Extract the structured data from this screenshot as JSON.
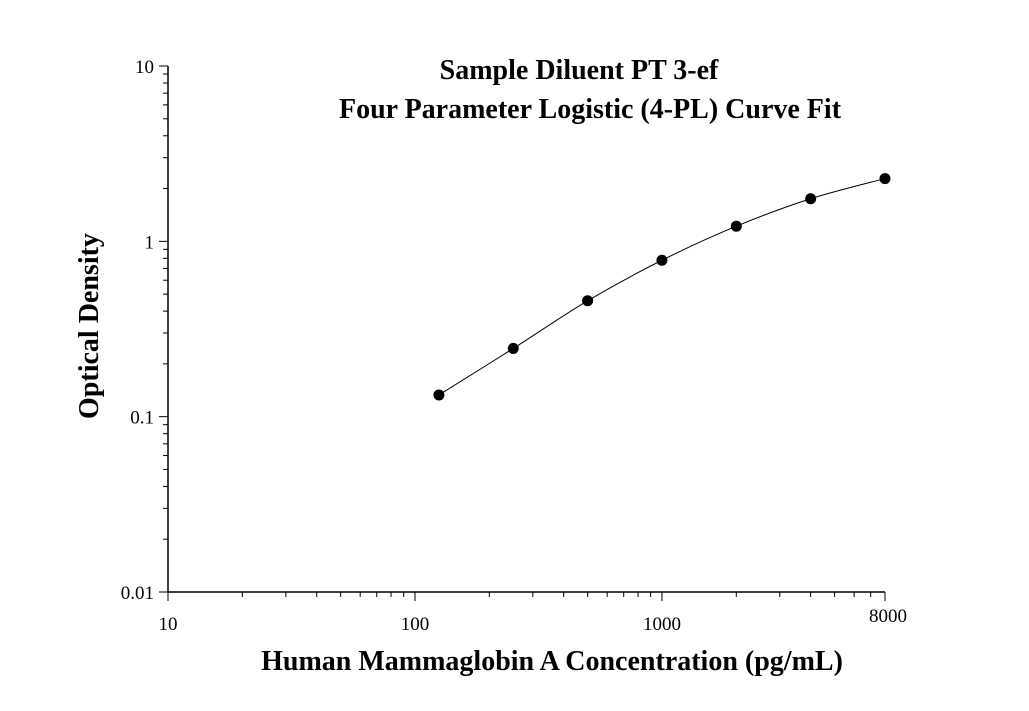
{
  "chart_data": {
    "type": "scatter",
    "title": "Sample Diluent PT 3-ef",
    "subtitle": "Four Parameter Logistic (4-PL) Curve Fit",
    "xlabel": "Human Mammaglobin A Concentration (pg/mL)",
    "ylabel": "Optical Density",
    "xscale": "log",
    "yscale": "log",
    "xlim": [
      10,
      8000
    ],
    "ylim": [
      0.01,
      10
    ],
    "xticks": [
      "10",
      "100",
      "1000",
      "8000"
    ],
    "yticks": [
      "10",
      "1",
      "0.1",
      "0.01"
    ],
    "grid": false,
    "series": [
      {
        "x": [
          125,
          250,
          500,
          1000,
          2000,
          4000,
          8000
        ],
        "y": [
          0.133,
          0.245,
          0.458,
          0.78,
          1.22,
          1.75,
          2.28
        ]
      }
    ],
    "fit_curve": {
      "model": "4-PL",
      "x_range": [
        125,
        8000
      ]
    }
  }
}
